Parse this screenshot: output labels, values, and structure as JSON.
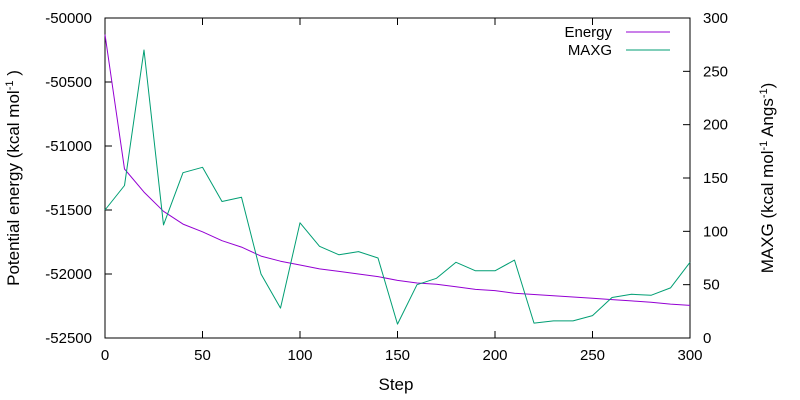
{
  "chart_data": {
    "type": "line",
    "title": "",
    "x": [
      0,
      10,
      20,
      30,
      40,
      50,
      60,
      70,
      80,
      90,
      100,
      110,
      120,
      130,
      140,
      150,
      160,
      170,
      180,
      190,
      200,
      210,
      220,
      230,
      240,
      250,
      260,
      270,
      280,
      290,
      300
    ],
    "xlabel": "Step",
    "xlim": [
      0,
      300
    ],
    "xticks": [
      0,
      50,
      100,
      150,
      200,
      250,
      300
    ],
    "ylabel_left": "Potential energy (kcal mol",
    "ylabel_left_sup": "-1",
    "ylabel_left_tail": ")",
    "ylim_left": [
      -52500,
      -50000
    ],
    "yticks_left": [
      -50000,
      -50500,
      -51000,
      -51500,
      -52000,
      -52500
    ],
    "ylabel_right_pre": "MAXG (kcal mol",
    "ylabel_right_sup1": "-1",
    "ylabel_right_mid": " Angs",
    "ylabel_right_sup2": "-1",
    "ylabel_right_tail": ")",
    "ylim_right": [
      0,
      300
    ],
    "yticks_right": [
      0,
      50,
      100,
      150,
      200,
      250,
      300
    ],
    "legend_position": "top-right",
    "grid": false,
    "series": [
      {
        "name": "Energy",
        "axis": "left",
        "color": "#9400d3",
        "values": [
          -50130,
          -51180,
          -51360,
          -51510,
          -51610,
          -51670,
          -51740,
          -51790,
          -51860,
          -51900,
          -51930,
          -51960,
          -51980,
          -52000,
          -52020,
          -52050,
          -52070,
          -52080,
          -52100,
          -52120,
          -52130,
          -52150,
          -52160,
          -52170,
          -52180,
          -52190,
          -52200,
          -52210,
          -52220,
          -52235,
          -52245
        ]
      },
      {
        "name": "MAXG",
        "axis": "right",
        "color": "#009e73",
        "values": [
          120,
          143,
          270,
          106,
          155,
          160,
          128,
          132,
          60,
          28,
          108,
          86,
          78,
          81,
          75,
          13,
          50,
          56,
          71,
          63,
          63,
          73,
          14,
          16,
          16,
          21,
          38,
          41,
          40,
          47,
          71
        ]
      }
    ]
  }
}
